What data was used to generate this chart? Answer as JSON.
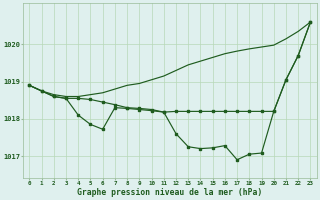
{
  "background_color": "#dff0ee",
  "line_color": "#1f5c1f",
  "grid_color": "#b8d8b8",
  "title": "Graphe pression niveau de la mer (hPa)",
  "ylabel_ticks": [
    1017,
    1018,
    1019,
    1020
  ],
  "xlim": [
    -0.5,
    23.5
  ],
  "ylim": [
    1016.4,
    1021.1
  ],
  "s1_x": [
    0,
    1,
    2,
    3,
    4,
    5,
    6,
    7,
    8,
    9,
    10,
    11,
    12,
    13,
    14,
    15,
    16,
    17,
    18,
    19,
    20,
    21,
    22,
    23
  ],
  "s1_y": [
    1018.9,
    1018.75,
    1018.65,
    1018.6,
    1018.6,
    1018.65,
    1018.7,
    1018.8,
    1018.9,
    1018.95,
    1019.05,
    1019.15,
    1019.3,
    1019.45,
    1019.55,
    1019.65,
    1019.75,
    1019.82,
    1019.88,
    1019.93,
    1019.98,
    1020.15,
    1020.35,
    1020.6
  ],
  "s2_x": [
    0,
    1,
    2,
    3,
    4,
    5,
    6,
    7,
    8,
    9,
    10,
    11,
    12,
    13,
    14,
    15,
    16,
    17,
    18,
    19,
    20,
    21,
    22,
    23
  ],
  "s2_y": [
    1018.9,
    1018.75,
    1018.6,
    1018.55,
    1018.1,
    1017.85,
    1017.72,
    1018.3,
    1018.28,
    1018.25,
    1018.22,
    1018.18,
    1017.6,
    1017.25,
    1017.2,
    1017.22,
    1017.28,
    1016.9,
    1017.05,
    1017.08,
    1018.2,
    1019.05,
    1019.7,
    1020.6
  ],
  "s3_x": [
    0,
    1,
    2,
    3,
    4,
    5,
    6,
    7,
    8,
    9,
    10,
    11,
    12,
    13,
    14,
    15,
    16,
    17,
    18,
    19,
    20,
    21,
    22,
    23
  ],
  "s3_y": [
    1018.9,
    1018.75,
    1018.6,
    1018.55,
    1018.55,
    1018.52,
    1018.45,
    1018.38,
    1018.3,
    1018.28,
    1018.25,
    1018.18,
    1018.2,
    1018.2,
    1018.2,
    1018.2,
    1018.2,
    1018.2,
    1018.2,
    1018.2,
    1018.2,
    1019.05,
    1019.7,
    1020.6
  ]
}
